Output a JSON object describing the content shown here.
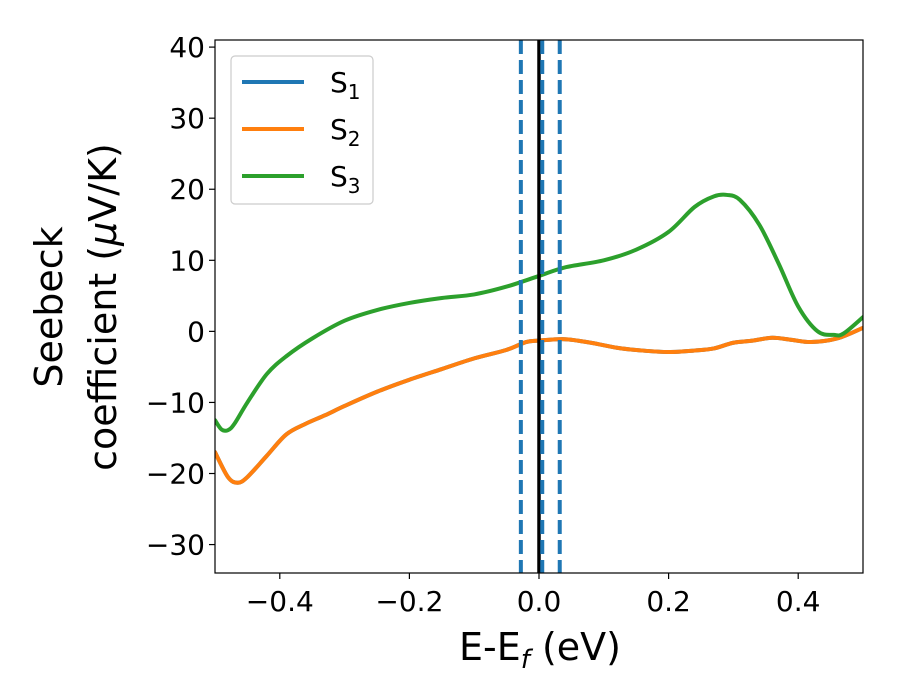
{
  "chart_data": {
    "type": "line",
    "xlabel_main": "E-E",
    "xlabel_sub": "f",
    "xlabel_unit": " (eV)",
    "ylabel_line1": "Seebeck",
    "ylabel_line2_pre": "coefficient  (",
    "ylabel_line2_mu": "μ",
    "ylabel_line2_post": "V/K)",
    "xlim": [
      -0.5,
      0.5
    ],
    "ylim": [
      -34,
      41
    ],
    "xticks": [
      -0.4,
      -0.2,
      0.0,
      0.2,
      0.4
    ],
    "xtick_labels": [
      "−0.4",
      "−0.2",
      "0.0",
      "0.2",
      "0.4"
    ],
    "yticks": [
      -30,
      -20,
      -10,
      0,
      10,
      20,
      30,
      40
    ],
    "ytick_labels": [
      "−30",
      "−20",
      "−10",
      "0",
      "10",
      "20",
      "30",
      "40"
    ],
    "legend_position": "top-left",
    "series": [
      {
        "name": "S",
        "sub": "1",
        "color": "#1f77b4",
        "x": [
          -0.5,
          -0.48,
          -0.465,
          -0.45,
          -0.42,
          -0.39,
          -0.36,
          -0.33,
          -0.3,
          -0.25,
          -0.2,
          -0.15,
          -0.1,
          -0.05,
          -0.02,
          0.0,
          0.04,
          0.08,
          0.12,
          0.16,
          0.2,
          0.24,
          0.27,
          0.3,
          0.33,
          0.36,
          0.39,
          0.42,
          0.46,
          0.5
        ],
        "y": [
          -17,
          -20.5,
          -21.3,
          -20.5,
          -17.5,
          -14.5,
          -13,
          -11.8,
          -10.5,
          -8.5,
          -6.8,
          -5.3,
          -3.8,
          -2.6,
          -1.5,
          -1.3,
          -1.1,
          -1.6,
          -2.3,
          -2.7,
          -2.9,
          -2.7,
          -2.4,
          -1.6,
          -1.3,
          -0.9,
          -1.2,
          -1.5,
          -1.0,
          0.5
        ]
      },
      {
        "name": "S",
        "sub": "2",
        "color": "#ff7f0e",
        "x": [
          -0.5,
          -0.48,
          -0.465,
          -0.45,
          -0.42,
          -0.39,
          -0.36,
          -0.33,
          -0.3,
          -0.25,
          -0.2,
          -0.15,
          -0.1,
          -0.05,
          -0.02,
          0.0,
          0.04,
          0.08,
          0.12,
          0.16,
          0.2,
          0.24,
          0.27,
          0.3,
          0.33,
          0.36,
          0.39,
          0.42,
          0.46,
          0.5
        ],
        "y": [
          -17,
          -20.5,
          -21.3,
          -20.5,
          -17.5,
          -14.5,
          -13,
          -11.8,
          -10.5,
          -8.5,
          -6.8,
          -5.3,
          -3.8,
          -2.6,
          -1.5,
          -1.3,
          -1.1,
          -1.6,
          -2.3,
          -2.7,
          -2.9,
          -2.7,
          -2.4,
          -1.6,
          -1.3,
          -0.9,
          -1.2,
          -1.5,
          -1.0,
          0.5
        ]
      },
      {
        "name": "S",
        "sub": "3",
        "color": "#2ca02c",
        "x": [
          -0.5,
          -0.49,
          -0.48,
          -0.47,
          -0.45,
          -0.42,
          -0.39,
          -0.35,
          -0.3,
          -0.25,
          -0.2,
          -0.15,
          -0.1,
          -0.05,
          0.0,
          0.04,
          0.1,
          0.15,
          0.2,
          0.24,
          0.27,
          0.29,
          0.31,
          0.34,
          0.37,
          0.4,
          0.43,
          0.455,
          0.47,
          0.5
        ],
        "y": [
          -12.5,
          -13.8,
          -13.9,
          -13.0,
          -10,
          -6,
          -3.5,
          -1,
          1.5,
          3,
          4,
          4.7,
          5.2,
          6.3,
          7.8,
          9,
          10,
          11.5,
          14,
          17.5,
          19,
          19.2,
          18.5,
          15,
          9.5,
          3.5,
          0,
          -0.5,
          -0.3,
          2
        ]
      }
    ],
    "vlines": [
      {
        "x": -0.028,
        "color": "#1f77b4",
        "style": "dashed"
      },
      {
        "x": 0.0,
        "color": "#000000",
        "style": "solid"
      },
      {
        "x": 0.005,
        "color": "#1f77b4",
        "style": "dashed"
      },
      {
        "x": 0.032,
        "color": "#1f77b4",
        "style": "dashed"
      }
    ]
  }
}
